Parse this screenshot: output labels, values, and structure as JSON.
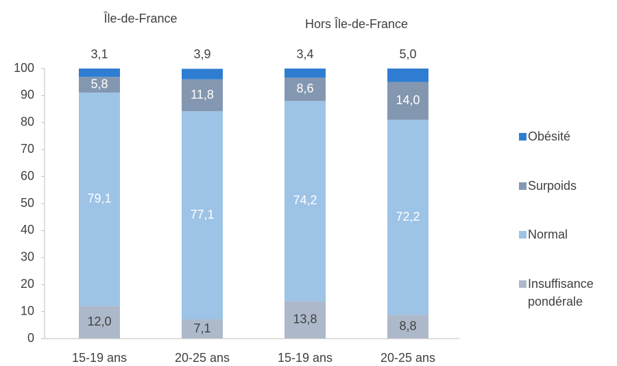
{
  "chart_data": {
    "type": "stacked_bar",
    "annotations": [
      "Île-de-France",
      "Hors Île-de-France"
    ],
    "categories": [
      "15-19 ans",
      "20-25 ans",
      "15-19 ans",
      "20-25 ans"
    ],
    "series": [
      {
        "name": "Insuffisance pondérale",
        "color": "#adb9ca",
        "label_color": "#404040",
        "values": [
          12.0,
          7.1,
          13.8,
          8.8
        ],
        "value_labels": [
          "12,0",
          "7,1",
          "13,8",
          "8,8"
        ]
      },
      {
        "name": "Normal",
        "color": "#9dc3e6",
        "label_color": "#ffffff",
        "values": [
          79.1,
          77.1,
          74.2,
          72.2
        ],
        "value_labels": [
          "79,1",
          "77,1",
          "74,2",
          "72,2"
        ]
      },
      {
        "name": "Surpoids",
        "color": "#8497b0",
        "label_color": "#ffffff",
        "values": [
          5.8,
          11.8,
          8.6,
          14.0
        ],
        "value_labels": [
          "5,8",
          "11,8",
          "8,6",
          "14,0"
        ]
      },
      {
        "name": "Obésité",
        "color": "#2e7dd2",
        "label_color": "#404040",
        "values": [
          3.1,
          3.9,
          3.4,
          5.0
        ],
        "value_labels": [
          "3,1",
          "3,9",
          "3,4",
          "5,0"
        ]
      }
    ],
    "ylim": [
      0,
      100
    ],
    "yticks": [
      0,
      10,
      20,
      30,
      40,
      50,
      60,
      70,
      80,
      90,
      100
    ]
  }
}
